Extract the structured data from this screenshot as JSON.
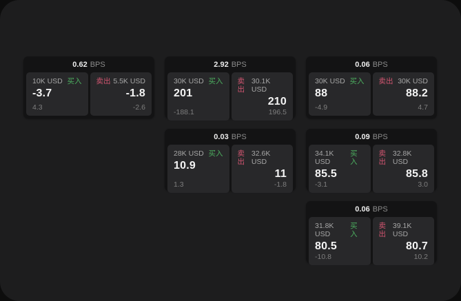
{
  "labels": {
    "bps_unit": "BPS",
    "buy": "买入",
    "sell": "卖出"
  },
  "colors": {
    "outer_bg": "#0d0d0d",
    "panel_bg": "#1d1d1e",
    "card_bg": "#131314",
    "tile_bg": "#28282a",
    "buy_green": "#4cae5f",
    "sell_red": "#d15570"
  },
  "cards": [
    {
      "bps": "0.62",
      "buy": {
        "amount": "10K USD",
        "value": "-3.7",
        "delta": "4.3"
      },
      "sell": {
        "amount": "5.5K USD",
        "value": "-1.8",
        "delta": "-2.6"
      }
    },
    {
      "bps": "2.92",
      "buy": {
        "amount": "30K USD",
        "value": "201",
        "delta": "-188.1"
      },
      "sell": {
        "amount": "30.1K USD",
        "value": "210",
        "delta": "196.5"
      }
    },
    {
      "bps": "0.06",
      "buy": {
        "amount": "30K USD",
        "value": "88",
        "delta": "-4.9"
      },
      "sell": {
        "amount": "30K USD",
        "value": "88.2",
        "delta": "4.7"
      }
    },
    {
      "bps": "0.03",
      "buy": {
        "amount": "28K USD",
        "value": "10.9",
        "delta": "1.3"
      },
      "sell": {
        "amount": "32.6K USD",
        "value": "11",
        "delta": "-1.8"
      }
    },
    {
      "bps": "0.09",
      "buy": {
        "amount": "34.1K USD",
        "value": "85.5",
        "delta": "-3.1"
      },
      "sell": {
        "amount": "32.8K USD",
        "value": "85.8",
        "delta": "3.0"
      }
    },
    {
      "bps": "0.06",
      "buy": {
        "amount": "31.8K USD",
        "value": "80.5",
        "delta": "-10.8"
      },
      "sell": {
        "amount": "39.1K USD",
        "value": "80.7",
        "delta": "10.2"
      }
    }
  ]
}
